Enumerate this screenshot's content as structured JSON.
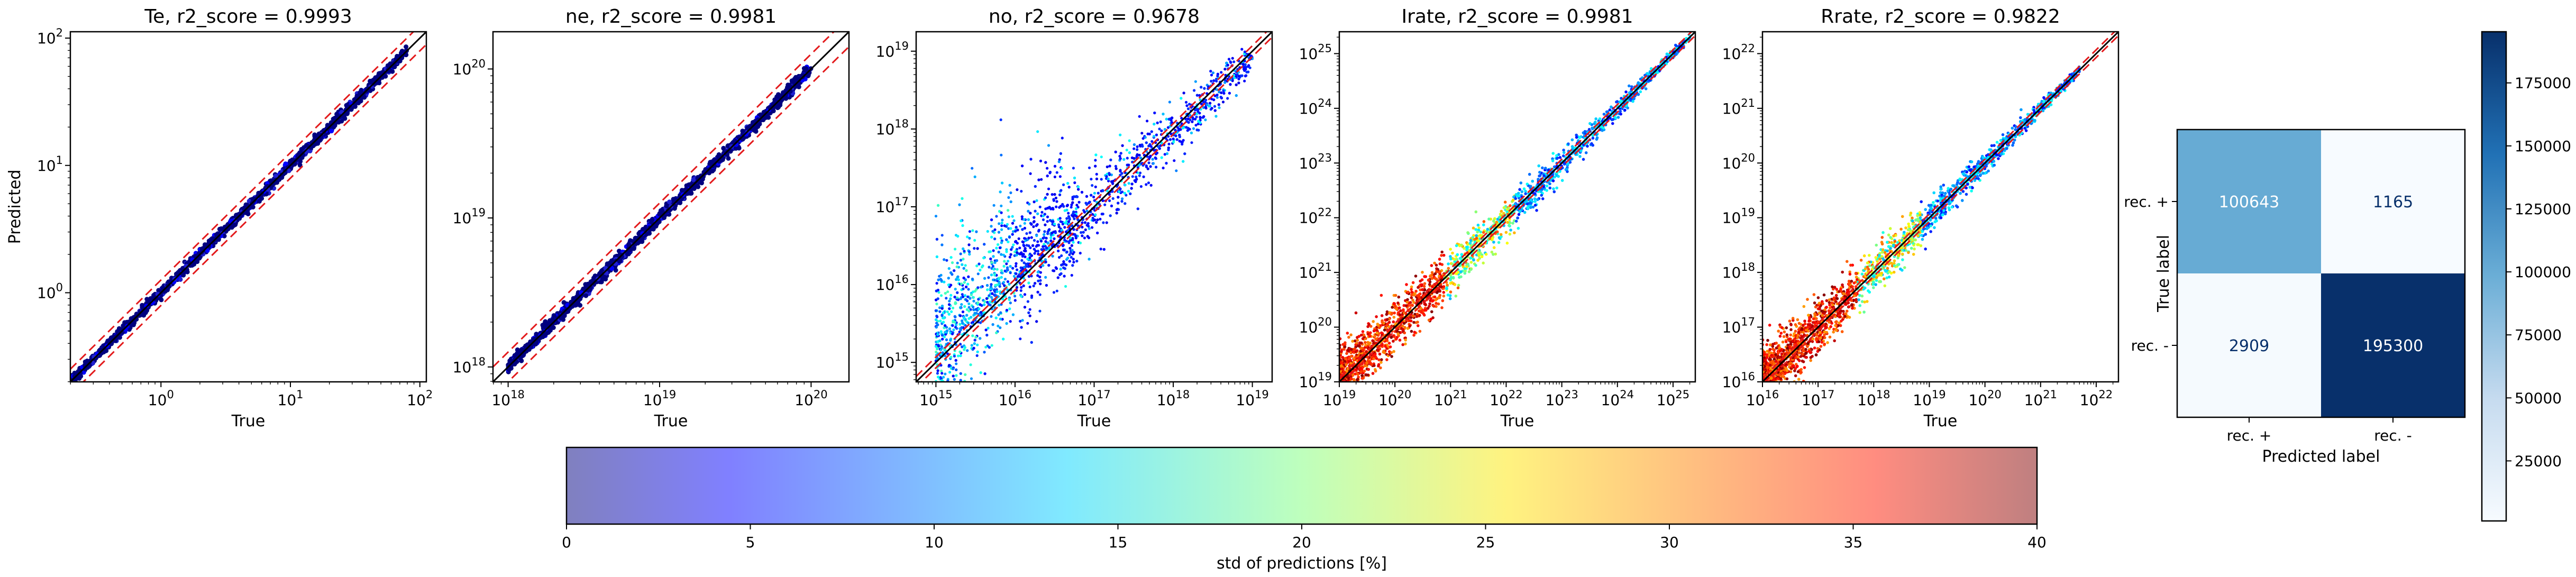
{
  "panels": [
    {
      "title": "Te, r2_score = 0.9993",
      "xlabel": "True",
      "ylabel": "Predicted",
      "scale": "log",
      "range_exp": [
        -0.7,
        2.05
      ],
      "xticks": [
        {
          "e": 0,
          "base": "10",
          "exp": "0"
        },
        {
          "e": 1,
          "base": "10",
          "exp": "1"
        },
        {
          "e": 2,
          "base": "10",
          "exp": "2"
        }
      ],
      "yticks": [
        {
          "e": 0,
          "base": "10",
          "exp": "0"
        },
        {
          "e": 1,
          "base": "10",
          "exp": "1"
        },
        {
          "e": 2,
          "base": "10",
          "exp": "2"
        }
      ],
      "true_range": [
        0.2,
        80
      ],
      "spread": "low"
    },
    {
      "title": "ne, r2_score = 0.9981",
      "xlabel": "True",
      "ylabel": "",
      "scale": "log",
      "range_exp": [
        17.9,
        20.25
      ],
      "xticks": [
        {
          "e": 18,
          "base": "10",
          "exp": "18"
        },
        {
          "e": 19,
          "base": "10",
          "exp": "19"
        },
        {
          "e": 20,
          "base": "10",
          "exp": "20"
        }
      ],
      "yticks": [
        {
          "e": 18,
          "base": "10",
          "exp": "18"
        },
        {
          "e": 19,
          "base": "10",
          "exp": "19"
        },
        {
          "e": 20,
          "base": "10",
          "exp": "20"
        }
      ],
      "true_range": [
        1e+18,
        1e+20
      ],
      "spread": "low"
    },
    {
      "title": "no, r2_score = 0.9678",
      "xlabel": "True",
      "ylabel": "",
      "scale": "log",
      "range_exp": [
        14.75,
        19.25
      ],
      "xticks": [
        {
          "e": 15,
          "base": "10",
          "exp": "15"
        },
        {
          "e": 16,
          "base": "10",
          "exp": "16"
        },
        {
          "e": 17,
          "base": "10",
          "exp": "17"
        },
        {
          "e": 18,
          "base": "10",
          "exp": "18"
        },
        {
          "e": 19,
          "base": "10",
          "exp": "19"
        }
      ],
      "yticks": [
        {
          "e": 15,
          "base": "10",
          "exp": "15"
        },
        {
          "e": 16,
          "base": "10",
          "exp": "16"
        },
        {
          "e": 17,
          "base": "10",
          "exp": "17"
        },
        {
          "e": 18,
          "base": "10",
          "exp": "18"
        },
        {
          "e": 19,
          "base": "10",
          "exp": "19"
        }
      ],
      "true_range": [
        1000000000000000.0,
        1e+19
      ],
      "spread": "high"
    },
    {
      "title": "Irate, r2_score = 0.9981",
      "xlabel": "True",
      "ylabel": "",
      "scale": "log",
      "range_exp": [
        19,
        25.4
      ],
      "xticks": [
        {
          "e": 19,
          "base": "10",
          "exp": "19"
        },
        {
          "e": 20,
          "base": "10",
          "exp": "20"
        },
        {
          "e": 21,
          "base": "10",
          "exp": "21"
        },
        {
          "e": 22,
          "base": "10",
          "exp": "22"
        },
        {
          "e": 23,
          "base": "10",
          "exp": "23"
        },
        {
          "e": 24,
          "base": "10",
          "exp": "24"
        },
        {
          "e": 25,
          "base": "10",
          "exp": "25"
        }
      ],
      "yticks": [
        {
          "e": 19,
          "base": "10",
          "exp": "19"
        },
        {
          "e": 20,
          "base": "10",
          "exp": "20"
        },
        {
          "e": 21,
          "base": "10",
          "exp": "21"
        },
        {
          "e": 22,
          "base": "10",
          "exp": "22"
        },
        {
          "e": 23,
          "base": "10",
          "exp": "23"
        },
        {
          "e": 24,
          "base": "10",
          "exp": "24"
        },
        {
          "e": 25,
          "base": "10",
          "exp": "25"
        }
      ],
      "true_range": [
        1e+19,
        2e+25
      ],
      "spread": "hot"
    },
    {
      "title": "Rrate, r2_score = 0.9822",
      "xlabel": "True",
      "ylabel": "",
      "scale": "log",
      "range_exp": [
        16,
        22.4
      ],
      "xticks": [
        {
          "e": 16,
          "base": "10",
          "exp": "16"
        },
        {
          "e": 17,
          "base": "10",
          "exp": "17"
        },
        {
          "e": 18,
          "base": "10",
          "exp": "18"
        },
        {
          "e": 19,
          "base": "10",
          "exp": "19"
        },
        {
          "e": 20,
          "base": "10",
          "exp": "20"
        },
        {
          "e": 21,
          "base": "10",
          "exp": "21"
        },
        {
          "e": 22,
          "base": "10",
          "exp": "22"
        }
      ],
      "yticks": [
        {
          "e": 16,
          "base": "10",
          "exp": "16"
        },
        {
          "e": 17,
          "base": "10",
          "exp": "17"
        },
        {
          "e": 18,
          "base": "10",
          "exp": "18"
        },
        {
          "e": 19,
          "base": "10",
          "exp": "19"
        },
        {
          "e": 20,
          "base": "10",
          "exp": "20"
        },
        {
          "e": 21,
          "base": "10",
          "exp": "21"
        },
        {
          "e": 22,
          "base": "10",
          "exp": "22"
        }
      ],
      "true_range": [
        1e+16,
        5e+21
      ],
      "spread": "hot2"
    }
  ],
  "confusion_matrix": {
    "xlabel": "Predicted label",
    "ylabel": "True label",
    "labels": [
      "rec. +",
      "rec. -"
    ],
    "values": [
      [
        100643,
        1165
      ],
      [
        2909,
        195300
      ]
    ],
    "colorbar_ticks": [
      "25000",
      "50000",
      "75000",
      "100000",
      "125000",
      "150000",
      "175000"
    ],
    "colorbar_values": [
      25000,
      50000,
      75000,
      100000,
      125000,
      150000,
      175000
    ],
    "colorbar_range": [
      1165,
      195300
    ]
  },
  "colorbar": {
    "label": "std of predictions [%]",
    "ticks": [
      "0",
      "5",
      "10",
      "15",
      "20",
      "25",
      "30",
      "35",
      "40"
    ],
    "values": [
      0,
      5,
      10,
      15,
      20,
      25,
      30,
      35,
      40
    ],
    "range": [
      0,
      40
    ]
  },
  "chart_data": [
    {
      "type": "scatter",
      "title": "Te, r2_score = 0.9993",
      "xlabel": "True",
      "ylabel": "Predicted",
      "xscale": "log",
      "yscale": "log",
      "x_range": [
        0.2,
        80
      ],
      "identity_line": true,
      "bounds_dashed": true
    },
    {
      "type": "scatter",
      "title": "ne, r2_score = 0.9981",
      "xlabel": "True",
      "xscale": "log",
      "yscale": "log",
      "x_range": [
        1e+18,
        1e+20
      ],
      "identity_line": true,
      "bounds_dashed": true
    },
    {
      "type": "scatter",
      "title": "no, r2_score = 0.9678",
      "xlabel": "True",
      "xscale": "log",
      "yscale": "log",
      "x_range": [
        1000000000000000.0,
        1e+19
      ],
      "identity_line": true,
      "bounds_dashed": true
    },
    {
      "type": "scatter",
      "title": "Irate, r2_score = 0.9981",
      "xlabel": "True",
      "xscale": "log",
      "yscale": "log",
      "x_range": [
        1e+19,
        2e+25
      ],
      "identity_line": true,
      "bounds_dashed": true
    },
    {
      "type": "scatter",
      "title": "Rrate, r2_score = 0.9822",
      "xlabel": "True",
      "xscale": "log",
      "yscale": "log",
      "x_range": [
        1e+16,
        5e+21
      ],
      "identity_line": true,
      "bounds_dashed": true
    },
    {
      "type": "heatmap",
      "xlabel": "Predicted label",
      "ylabel": "True label",
      "categories": [
        "rec. +",
        "rec. -"
      ],
      "values": [
        [
          100643,
          1165
        ],
        [
          2909,
          195300
        ]
      ]
    }
  ]
}
